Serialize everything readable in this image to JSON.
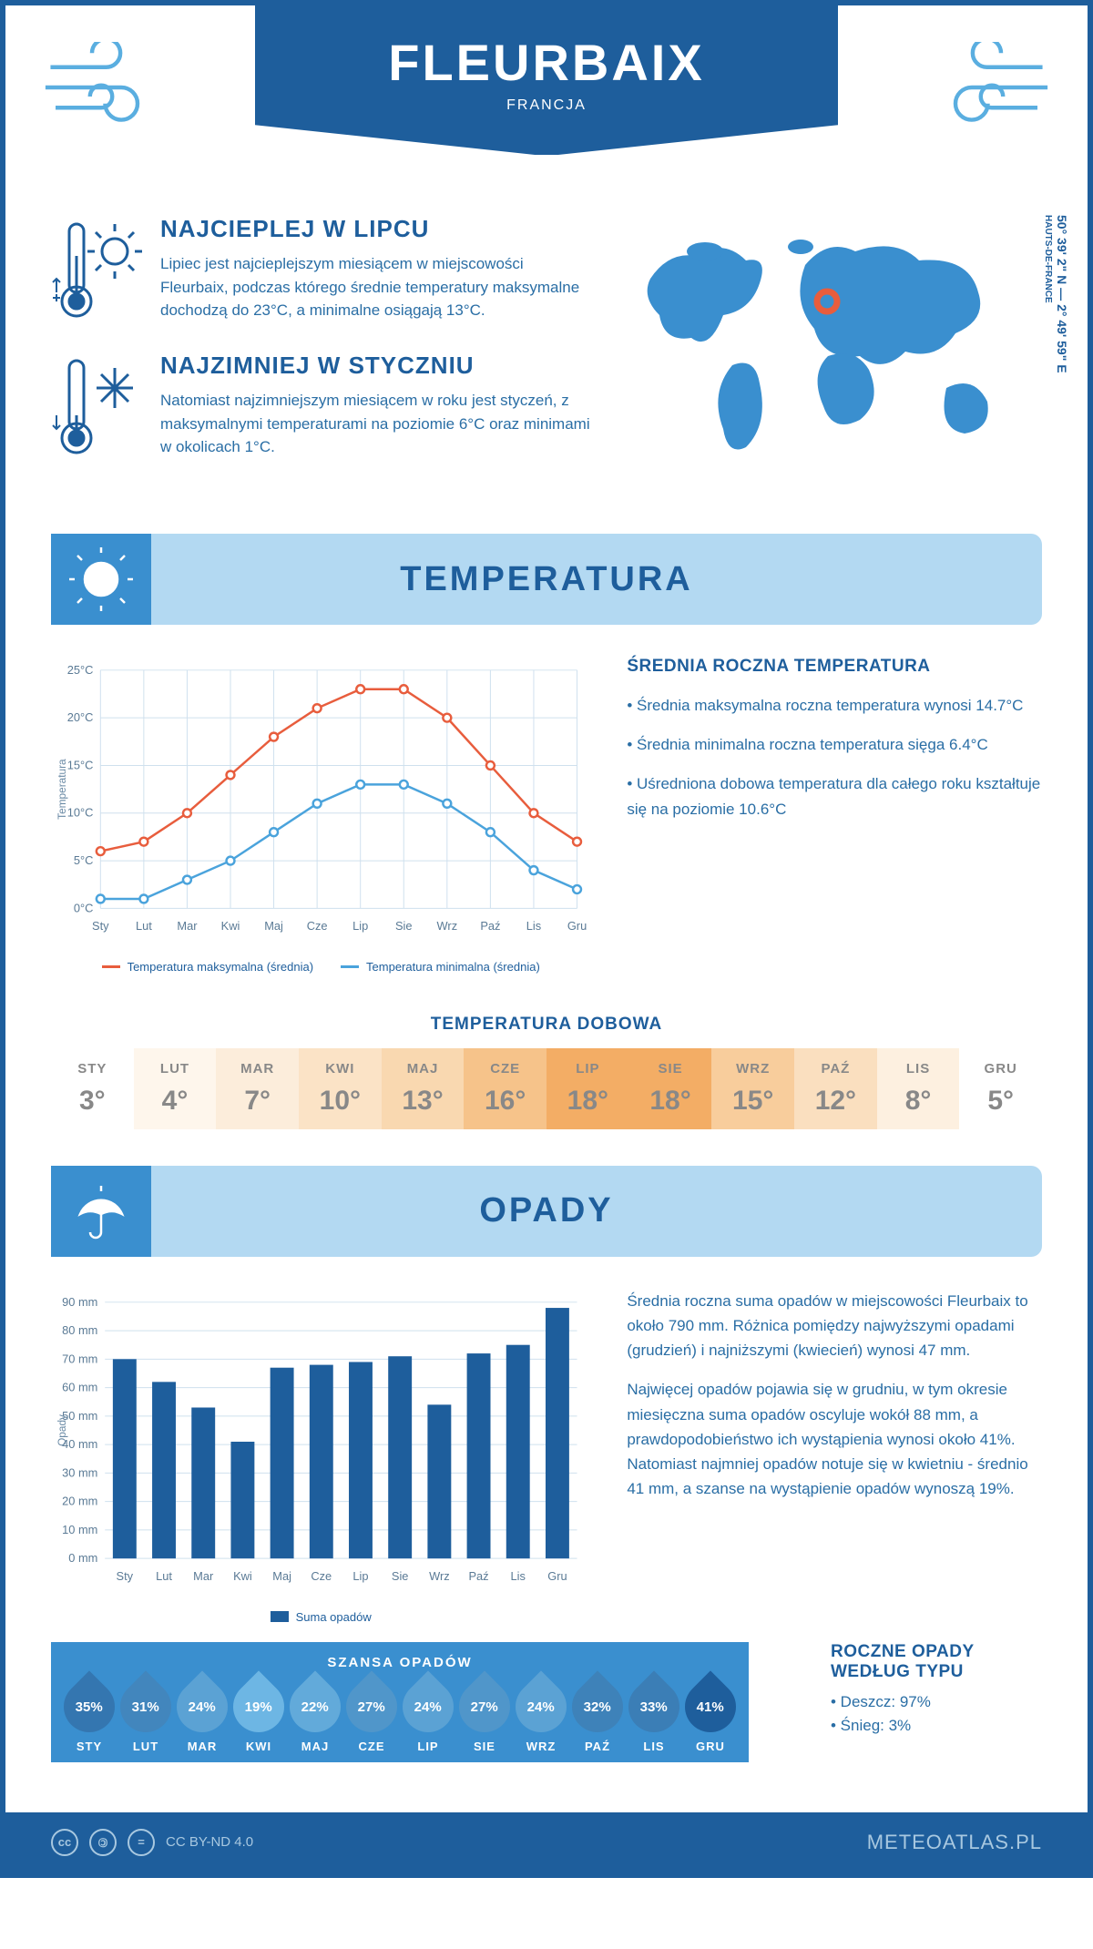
{
  "header": {
    "city": "FLEURBAIX",
    "country": "FRANCJA"
  },
  "coords": {
    "lat": "50° 39' 2\" N",
    "lon": "2° 49' 59\" E",
    "region": "HAUTS-DE-FRANCE"
  },
  "warm": {
    "title": "NAJCIEPLEJ W LIPCU",
    "text": "Lipiec jest najcieplejszym miesiącem w miejscowości Fleurbaix, podczas którego średnie temperatury maksymalne dochodzą do 23°C, a minimalne osiągają 13°C."
  },
  "cold": {
    "title": "NAJZIMNIEJ W STYCZNIU",
    "text": "Natomiast najzimniejszym miesiącem w roku jest styczeń, z maksymalnymi temperaturami na poziomie 6°C oraz minimami w okolicach 1°C."
  },
  "temperature": {
    "section_title": "TEMPERATURA",
    "side_title": "ŚREDNIA ROCZNA TEMPERATURA",
    "bullets": [
      "• Średnia maksymalna roczna temperatura wynosi 14.7°C",
      "• Średnia minimalna roczna temperatura sięga 6.4°C",
      "• Uśredniona dobowa temperatura dla całego roku kształtuje się na poziomie 10.6°C"
    ],
    "chart": {
      "type": "line",
      "ylabel": "Temperatura",
      "ylim": [
        0,
        25
      ],
      "ytick_step": 5,
      "ytick_labels": [
        "0°C",
        "5°C",
        "10°C",
        "15°C",
        "20°C",
        "25°C"
      ],
      "months": [
        "Sty",
        "Lut",
        "Mar",
        "Kwi",
        "Maj",
        "Cze",
        "Lip",
        "Sie",
        "Wrz",
        "Paź",
        "Lis",
        "Gru"
      ],
      "max_series": [
        6,
        7,
        10,
        14,
        18,
        21,
        23,
        23,
        20,
        15,
        10,
        7
      ],
      "min_series": [
        1,
        1,
        3,
        5,
        8,
        11,
        13,
        13,
        11,
        8,
        4,
        2
      ],
      "max_color": "#e85d3d",
      "min_color": "#4aa3dc",
      "grid_color": "#cfe0ee",
      "marker_fill": "#ffffff",
      "legend_max": "Temperatura maksymalna (średnia)",
      "legend_min": "Temperatura minimalna (średnia)"
    },
    "daily": {
      "title": "TEMPERATURA DOBOWA",
      "months": [
        "STY",
        "LUT",
        "MAR",
        "KWI",
        "MAJ",
        "CZE",
        "LIP",
        "SIE",
        "WRZ",
        "PAŹ",
        "LIS",
        "GRU"
      ],
      "values": [
        "3°",
        "4°",
        "7°",
        "10°",
        "13°",
        "16°",
        "18°",
        "18°",
        "15°",
        "12°",
        "8°",
        "5°"
      ],
      "bg_colors": [
        "#ffffff",
        "#fef6ec",
        "#fceddb",
        "#fbe3c6",
        "#f9d8b0",
        "#f6c38a",
        "#f3ad65",
        "#f3ad65",
        "#f8cd9c",
        "#fadfbf",
        "#fdf0e0",
        "#ffffff"
      ]
    }
  },
  "precip": {
    "section_title": "OPADY",
    "chart": {
      "type": "bar",
      "ylabel": "Opady",
      "ylim": [
        0,
        90
      ],
      "ytick_step": 10,
      "ytick_labels": [
        "0 mm",
        "10 mm",
        "20 mm",
        "30 mm",
        "40 mm",
        "50 mm",
        "60 mm",
        "70 mm",
        "80 mm",
        "90 mm"
      ],
      "months": [
        "Sty",
        "Lut",
        "Mar",
        "Kwi",
        "Maj",
        "Cze",
        "Lip",
        "Sie",
        "Wrz",
        "Paź",
        "Lis",
        "Gru"
      ],
      "values": [
        70,
        62,
        53,
        41,
        67,
        68,
        69,
        71,
        54,
        72,
        75,
        88
      ],
      "bar_color": "#1e5e9c",
      "grid_color": "#cfe0ee",
      "legend": "Suma opadów"
    },
    "desc1": "Średnia roczna suma opadów w miejscowości Fleurbaix to około 790 mm. Różnica pomiędzy najwyższymi opadami (grudzień) i najniższymi (kwiecień) wynosi 47 mm.",
    "desc2": "Najwięcej opadów pojawia się w grudniu, w tym okresie miesięczna suma opadów oscyluje wokół 88 mm, a prawdopodobieństwo ich wystąpienia wynosi około 41%. Natomiast najmniej opadów notuje się w kwietniu - średnio 41 mm, a szanse na wystąpienie opadów wynoszą 19%.",
    "chance": {
      "title": "SZANSA OPADÓW",
      "months": [
        "STY",
        "LUT",
        "MAR",
        "KWI",
        "MAJ",
        "CZE",
        "LIP",
        "SIE",
        "WRZ",
        "PAŹ",
        "LIS",
        "GRU"
      ],
      "values": [
        "35%",
        "31%",
        "24%",
        "19%",
        "22%",
        "27%",
        "24%",
        "27%",
        "24%",
        "32%",
        "33%",
        "41%"
      ],
      "pct": [
        35,
        31,
        24,
        19,
        22,
        27,
        24,
        27,
        24,
        32,
        33,
        41
      ],
      "drop_light": "#6db6e4",
      "drop_dark": "#1e5e9c"
    },
    "type": {
      "title": "ROCZNE OPADY WEDŁUG TYPU",
      "rain": "• Deszcz: 97%",
      "snow": "• Śnieg: 3%"
    }
  },
  "footer": {
    "license": "CC BY-ND 4.0",
    "brand": "METEOATLAS.PL"
  }
}
